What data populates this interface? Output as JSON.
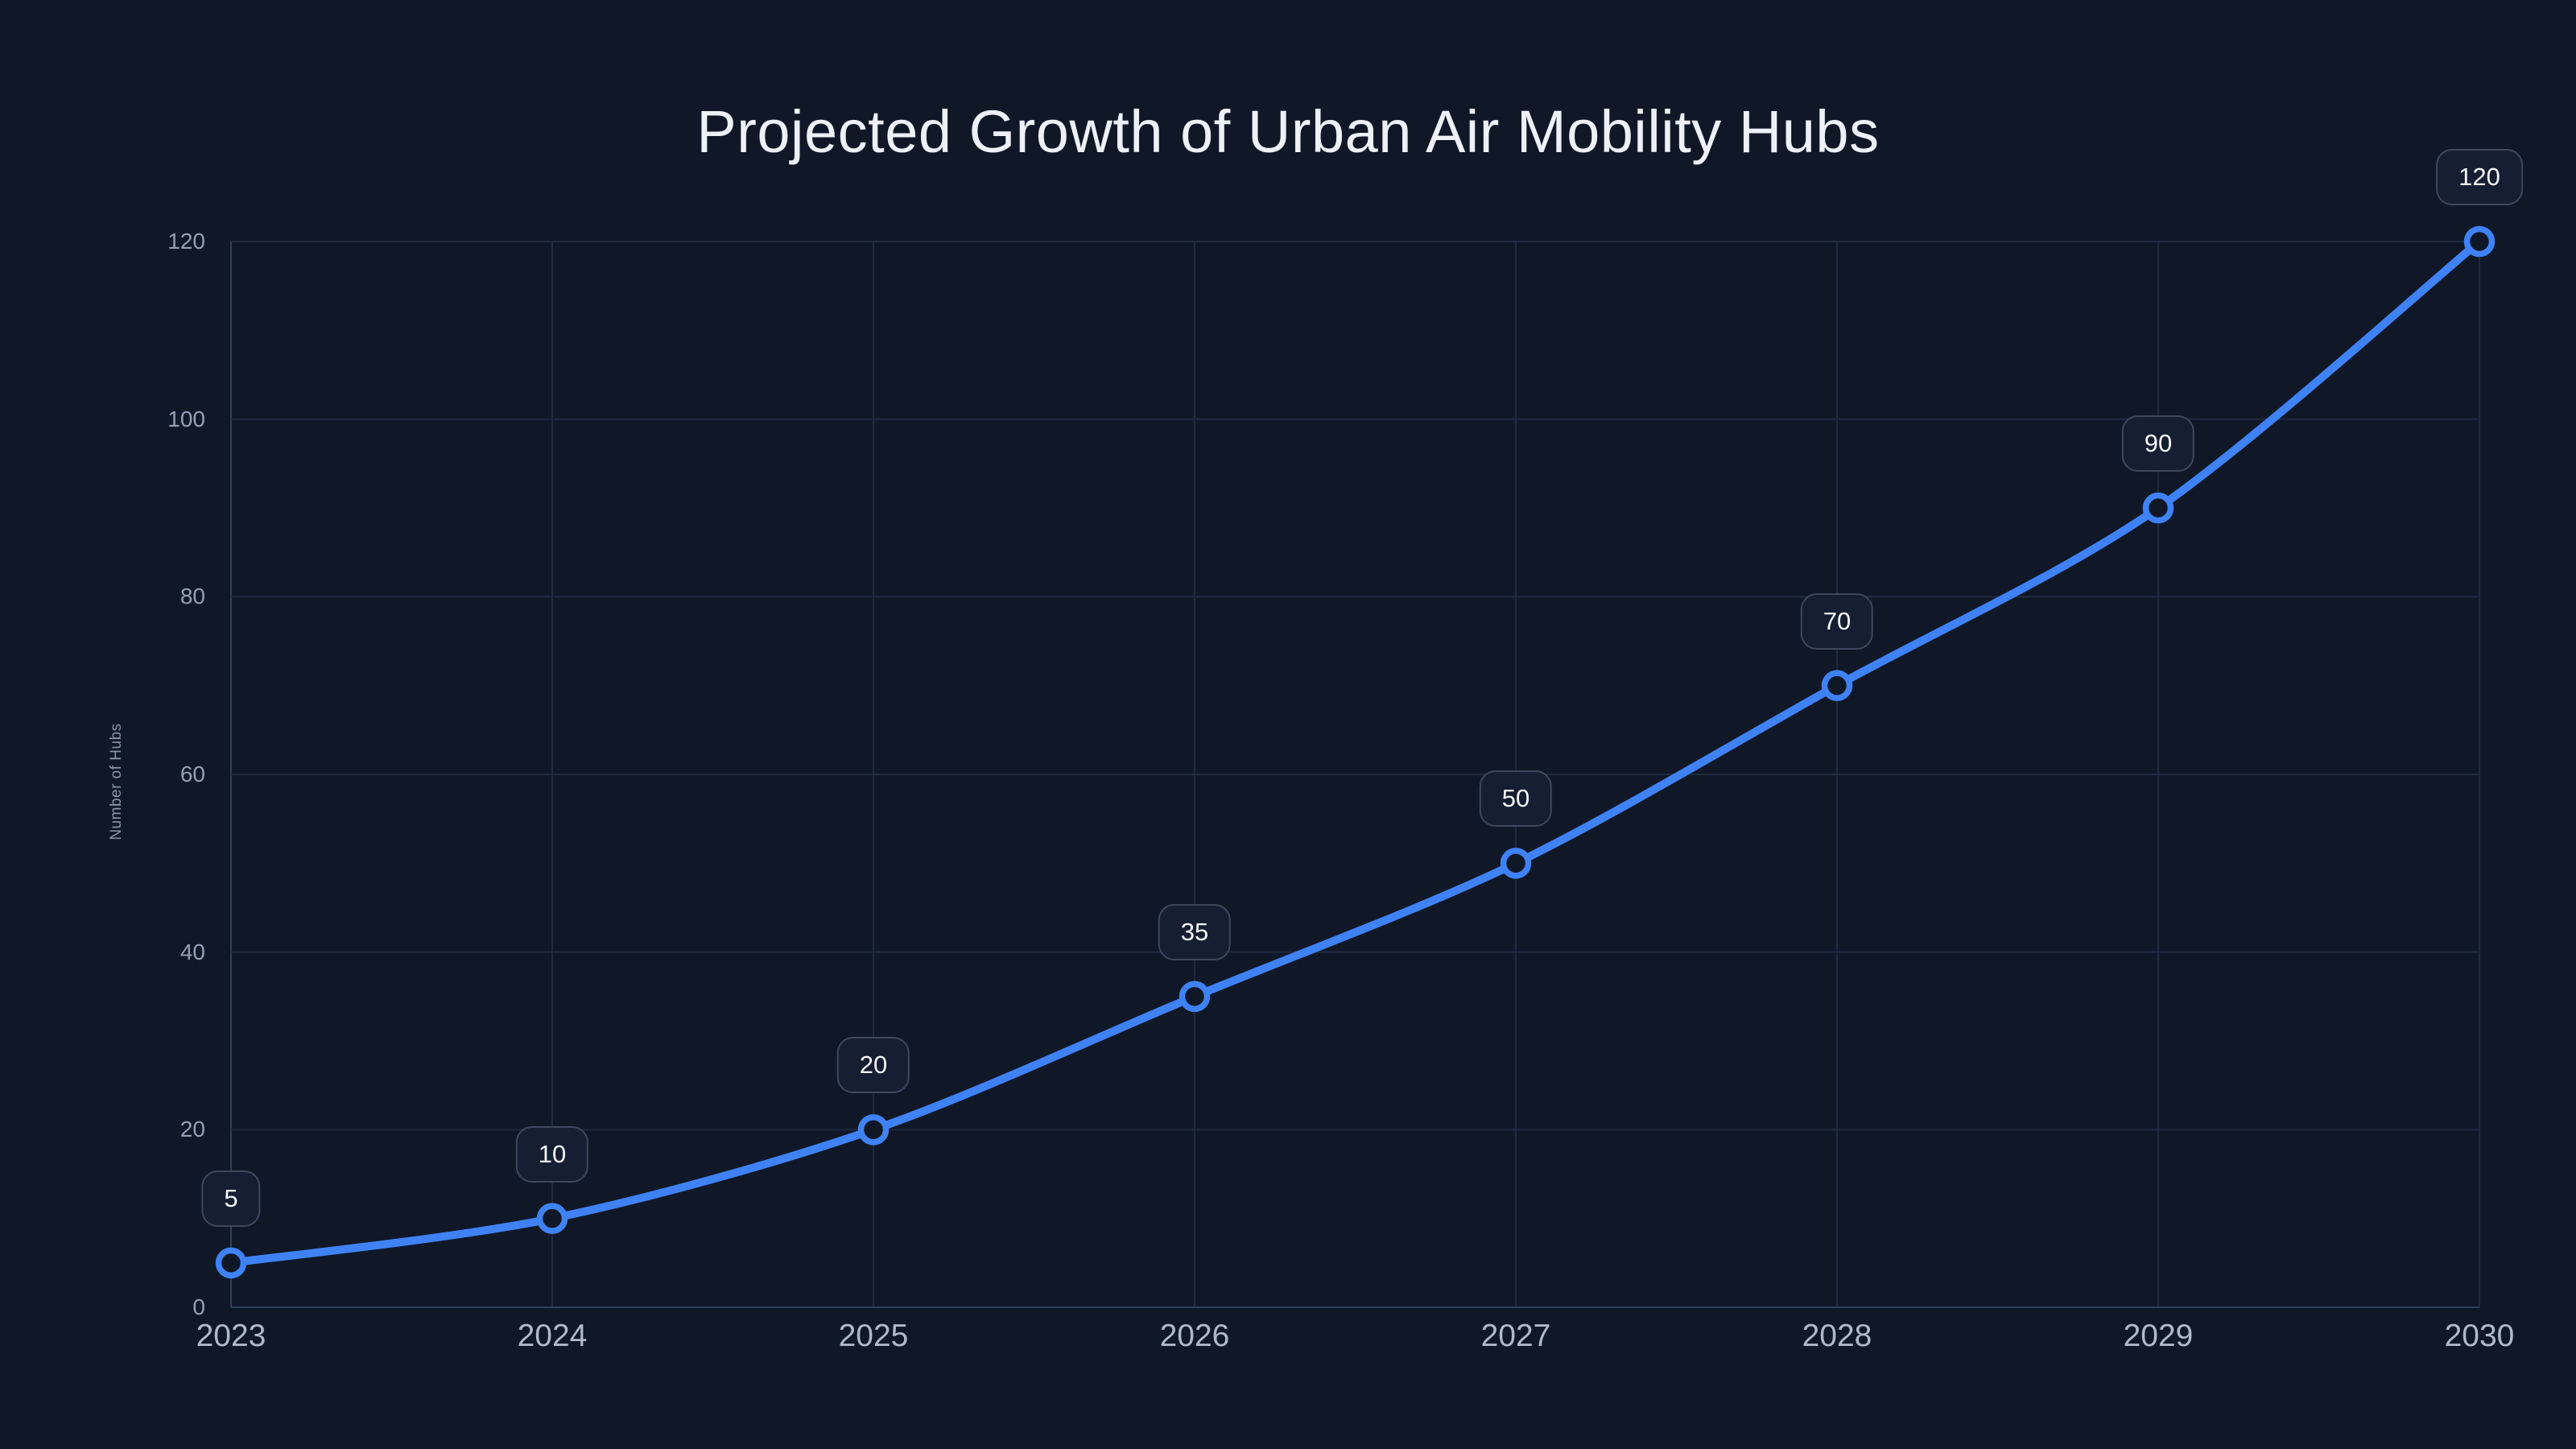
{
  "chart_data": {
    "type": "line",
    "title": "Projected Growth of Urban Air Mobility Hubs",
    "xlabel": "",
    "ylabel": "Number of Hubs",
    "categories": [
      "2023",
      "2024",
      "2025",
      "2026",
      "2027",
      "2028",
      "2029",
      "2030"
    ],
    "series": [
      {
        "name": "Number of Hubs",
        "values": [
          5,
          10,
          20,
          35,
          50,
          70,
          90,
          120
        ]
      }
    ],
    "point_labels": [
      "5",
      "10",
      "20",
      "35",
      "50",
      "70",
      "90",
      "120"
    ],
    "ylim": [
      0,
      120
    ],
    "yticks": [
      0,
      20,
      40,
      60,
      80,
      100,
      120
    ],
    "ytick_labels": [
      "0",
      "20",
      "40",
      "60",
      "80",
      "100",
      "120"
    ],
    "grid": true,
    "legend": false,
    "marker_style": "hollow-circle",
    "line_smoothing": "curved"
  },
  "style": {
    "background": "#101828",
    "line_color": "#3f82f6",
    "marker_ring_color": "#3f82f6",
    "marker_fill_color": "#101828",
    "grid_color": "#1f2a40",
    "axis_color": "#33405a",
    "title_color": "#edf1f7",
    "y_axis_title_color": "#8795ac",
    "y_tick_color": "#93a0b5",
    "x_tick_color": "#aeb9ca",
    "chip_background": "#151e32",
    "chip_border_color": "#3e485c",
    "chip_text_color": "#f5f8fc"
  }
}
